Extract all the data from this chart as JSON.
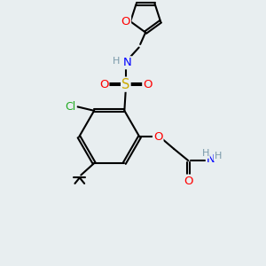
{
  "bg_color": "#e8eef0",
  "bond_color": "#000000",
  "bond_width": 1.5,
  "atom_colors": {
    "H": "#7a9aaa",
    "N": "#0000ff",
    "O": "#ff0000",
    "S": "#ccaa00",
    "Cl": "#22aa22"
  },
  "font_size": 8.5
}
